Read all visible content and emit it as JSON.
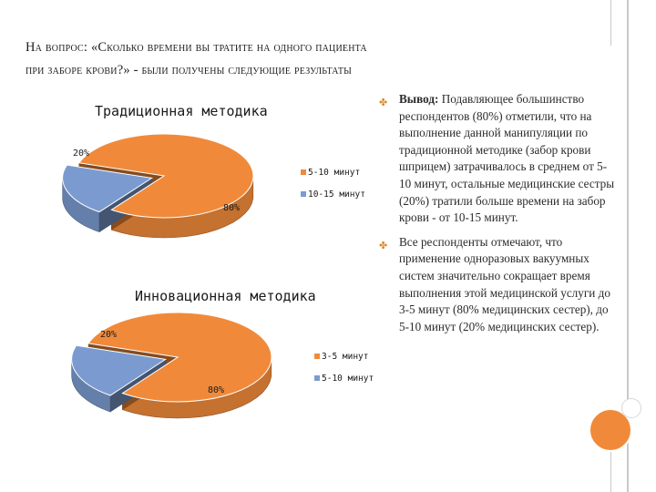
{
  "title": {
    "line1": "На вопрос: «Сколько времени вы тратите на одного пациента",
    "line2": "при заборе крови?» - были получены следующие результаты"
  },
  "colors": {
    "orange": "#f08a3a",
    "blue": "#7b9bd0",
    "accent": "#f08a3a",
    "bullet": "#d98a2b"
  },
  "chart_data": [
    {
      "type": "pie",
      "title": "Традиционная методика",
      "categories": [
        "5-10 минут",
        "10-15 минут"
      ],
      "values": [
        80,
        20
      ],
      "labels": [
        "80%",
        "20%"
      ],
      "colors": [
        "#f08a3a",
        "#7b9bd0"
      ],
      "legend": "right"
    },
    {
      "type": "pie",
      "title": "Инновационная методика",
      "categories": [
        "3-5 минут",
        "5-10 минут"
      ],
      "values": [
        80,
        20
      ],
      "labels": [
        "80%",
        "20%"
      ],
      "colors": [
        "#f08a3a",
        "#7b9bd0"
      ],
      "legend": "right"
    }
  ],
  "conclusions": [
    {
      "icon": "diamond-bullet-icon",
      "lead": "Вывод:",
      "text": " Подавляющее большинство респондентов (80%) отметили, что на выполнение данной манипуляции по традиционной методике (забор крови шприцем) затрачивалось в среднем от 5-10 минут, остальные медицинские сестры (20%) тратили больше времени на забор крови - от 10-15 минут."
    },
    {
      "icon": "diamond-bullet-icon",
      "lead": "",
      "text": "Все респонденты отмечают, что применение одноразовых вакуумных систем значительно сокращает время выполнения этой медицинской услуги до 3-5 минут (80% медицинских сестер), до 5-10 минут (20% медицинских сестер)."
    }
  ]
}
